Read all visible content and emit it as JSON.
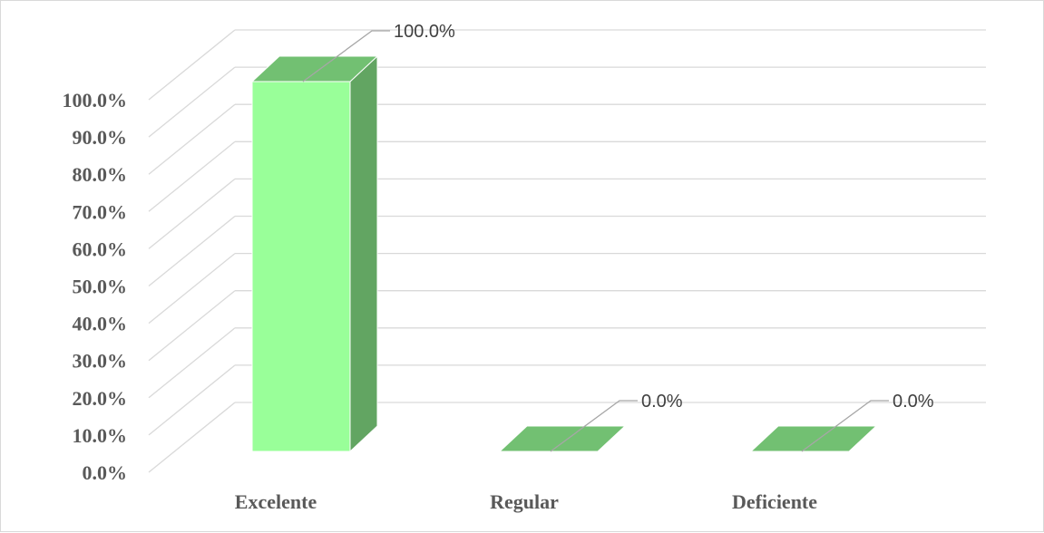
{
  "chart_data": {
    "type": "bar",
    "style": "3d-column",
    "categories": [
      "Excelente",
      "Regular",
      "Deficiente"
    ],
    "values": [
      100.0,
      0.0,
      0.0
    ],
    "data_labels": [
      "100.0%",
      "0.0%",
      "0.0%"
    ],
    "y_ticks": [
      "0.0%",
      "10.0%",
      "20.0%",
      "30.0%",
      "40.0%",
      "50.0%",
      "60.0%",
      "70.0%",
      "80.0%",
      "90.0%",
      "100.0%"
    ],
    "ylim": [
      0,
      100
    ],
    "grid": true,
    "legend": "none",
    "title": "",
    "xlabel": "",
    "ylabel": ""
  },
  "colors": {
    "bar_front": "#99ff99",
    "bar_side": "#62a562",
    "bar_top": "#72c072",
    "gridline": "#d9d9d9",
    "leader_line": "#a6a6a6"
  }
}
